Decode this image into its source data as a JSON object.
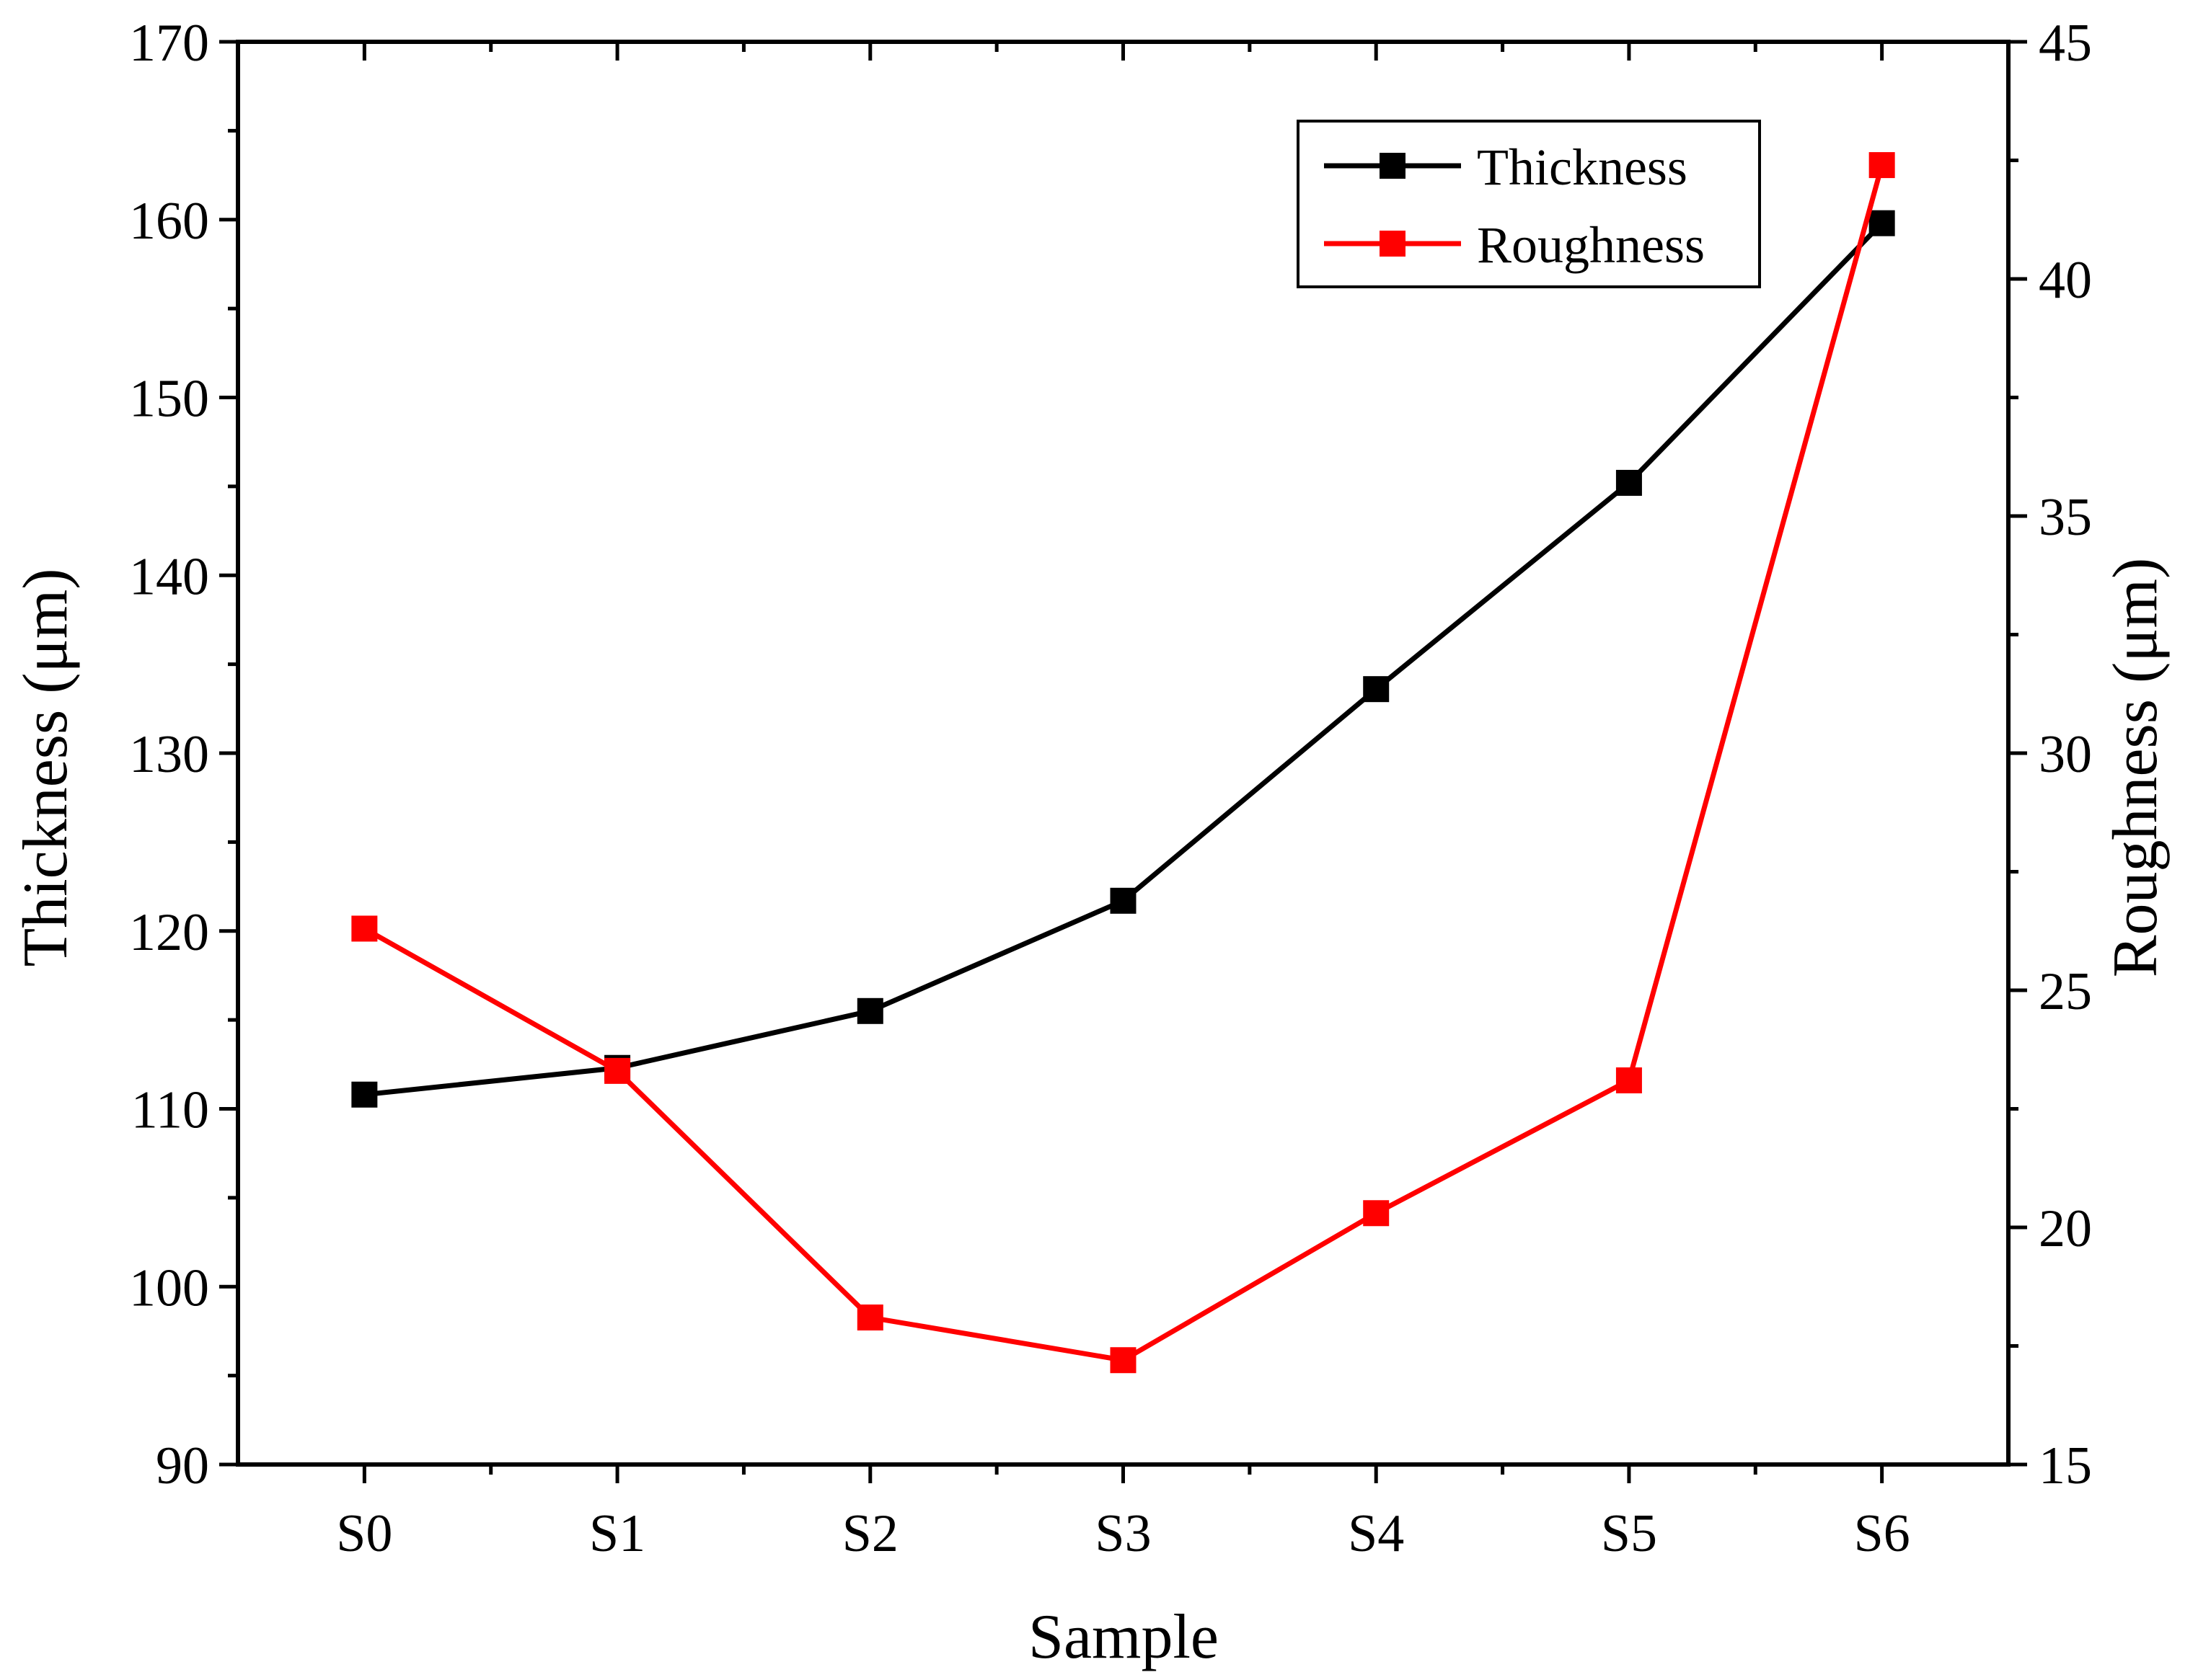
{
  "chart_data": {
    "type": "line",
    "title": "",
    "xlabel": "Sample",
    "ylabel": "Thickness (μm)",
    "y2label": "Roughness (μm)",
    "categories": [
      "S0",
      "S1",
      "S2",
      "S3",
      "S4",
      "S5",
      "S6"
    ],
    "ylim": [
      90,
      170
    ],
    "y2lim": [
      15,
      45
    ],
    "yticks": [
      "90",
      "100",
      "110",
      "120",
      "130",
      "140",
      "150",
      "160",
      "170"
    ],
    "y2ticks": [
      "15",
      "20",
      "25",
      "30",
      "35",
      "40",
      "45"
    ],
    "legend_position": "top-right",
    "series": [
      {
        "name": "Thickness",
        "axis": "left",
        "color": "#000000",
        "marker": "square",
        "values": [
          110.8,
          112.3,
          115.5,
          121.7,
          133.6,
          145.2,
          159.8
        ]
      },
      {
        "name": "Roughness",
        "axis": "right",
        "color": "#ff0000",
        "marker": "square",
        "values": [
          26.3,
          23.3,
          18.1,
          17.2,
          20.3,
          23.1,
          42.4
        ]
      }
    ]
  }
}
